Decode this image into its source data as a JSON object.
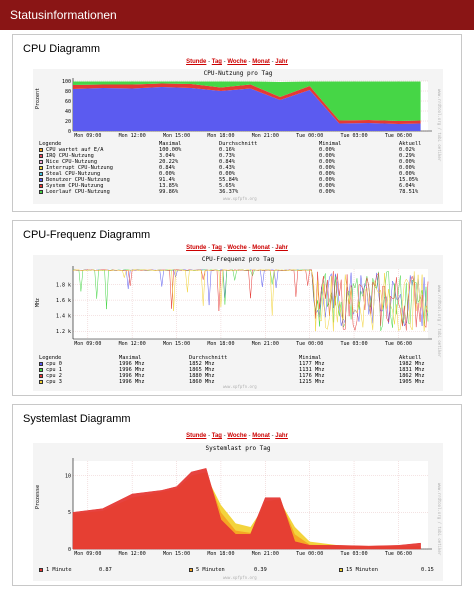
{
  "page": {
    "title": "Statusinformationen"
  },
  "nav_links": {
    "hour": "Stunde",
    "day": "Tag",
    "week": "Woche",
    "month": "Monat",
    "year": "Jahr",
    "sep": " - "
  },
  "cpu_panel": {
    "title": "CPU Diagramm",
    "chart_title": "CPU-Nutzung pro Tag",
    "ylabel": "Prozent",
    "watermark": "www.rrdtool.org / tobi oetiker",
    "footer": "www.xpfpfn.org",
    "columns": [
      "Legende",
      "Maximal",
      "Durchschnitt",
      "Minimal",
      "Aktuell"
    ],
    "rows": [
      {
        "name": "CPU wartet auf E/A",
        "max": "100.00%",
        "avg": "0.16%",
        "min": "0.00%",
        "cur": "0.02%",
        "color": "#f5a623"
      },
      {
        "name": "IRQ CPU-Nutzung",
        "max": "3.04%",
        "avg": "0.73%",
        "min": "0.00%",
        "cur": "0.29%",
        "color": "#e84a5f"
      },
      {
        "name": "Nice CPU-Nutzung",
        "max": "20.22%",
        "avg": "0.84%",
        "min": "0.00%",
        "cur": "0.00%",
        "color": "#f3a5d0"
      },
      {
        "name": "Interrupt CPU-Nutzung",
        "max": "0.84%",
        "avg": "0.43%",
        "min": "0.00%",
        "cur": "0.00%",
        "color": "#f2d233"
      },
      {
        "name": "Steal CPU-Nutzung",
        "max": "0.00%",
        "avg": "0.00%",
        "min": "0.00%",
        "cur": "0.00%",
        "color": "#43c0e0"
      },
      {
        "name": "Benutzer CPU-Nutzung",
        "max": "91.4%",
        "avg": "55.84%",
        "min": "0.00%",
        "cur": "15.05%",
        "color": "#5b5bf0"
      },
      {
        "name": "System CPU-Nutzung",
        "max": "13.85%",
        "avg": "5.65%",
        "min": "0.00%",
        "cur": "6.04%",
        "color": "#e53935"
      },
      {
        "name": "Leerlauf CPU-Nutzung",
        "max": "99.86%",
        "avg": "36.37%",
        "min": "0.00%",
        "cur": "78.51%",
        "color": "#46d646"
      }
    ]
  },
  "freq_panel": {
    "title": "CPU-Frequenz Diagramm",
    "chart_title": "CPU-Frequenz pro Tag",
    "ylabel": "MHz",
    "watermark": "www.rrdtool.org / tobi oetiker",
    "footer": "www.xpfpfn.org",
    "columns": [
      "Legende",
      "Maximal",
      "Durchschnitt",
      "Minimal",
      "Aktuell"
    ],
    "rows": [
      {
        "name": "cpu 0",
        "max": "1996 Mhz",
        "avg": "1852 Mhz",
        "min": "1177 Mhz",
        "cur": "1982 Mhz",
        "color": "#5b5bf0"
      },
      {
        "name": "cpu 1",
        "max": "1996 Mhz",
        "avg": "1865 Mhz",
        "min": "1131 Mhz",
        "cur": "1831 Mhz",
        "color": "#46d646"
      },
      {
        "name": "cpu 2",
        "max": "1996 Mhz",
        "avg": "1880 Mhz",
        "min": "1176 Mhz",
        "cur": "1862 Mhz",
        "color": "#e53935"
      },
      {
        "name": "cpu 3",
        "max": "1996 Mhz",
        "avg": "1860 Mhz",
        "min": "1215 Mhz",
        "cur": "1905 Mhz",
        "color": "#f2d233"
      }
    ]
  },
  "load_panel": {
    "title": "Systemlast Diagramm",
    "chart_title": "Systemlast pro Tag",
    "ylabel": "Prozesse",
    "watermark": "www.rrdtool.org / tobi oetiker",
    "footer": "www.xpfpfn.org",
    "legend": [
      {
        "name": "1 Minute",
        "value": "0.87",
        "color": "#e53935"
      },
      {
        "name": "5 Minuten",
        "value": "0.39",
        "color": "#f5a623"
      },
      {
        "name": "15 Minuten",
        "value": "0.15",
        "color": "#f2d233"
      }
    ]
  },
  "chart_data": [
    {
      "type": "area",
      "title": "CPU-Nutzung pro Tag",
      "ylabel": "Prozent",
      "ylim": [
        0,
        100
      ],
      "y_ticks": [
        "0",
        "20",
        "40",
        "60",
        "80",
        "100"
      ],
      "x_ticks": [
        "Mon 09:00",
        "Mon 12:00",
        "Mon 15:00",
        "Mon 18:00",
        "Mon 21:00",
        "Tue 00:00",
        "Tue 03:00",
        "Tue 06:00"
      ],
      "x_hours": [
        0,
        2,
        4,
        6,
        8,
        10,
        12,
        14,
        16,
        18,
        20,
        22,
        23.5
      ],
      "series": [
        {
          "name": "Benutzer CPU-Nutzung",
          "values": [
            84,
            86,
            85,
            88,
            86,
            80,
            85,
            62,
            82,
            15,
            16,
            14,
            15
          ]
        },
        {
          "name": "System CPU-Nutzung",
          "values": [
            8,
            7,
            8,
            7,
            8,
            7,
            8,
            6,
            8,
            6,
            6,
            6,
            6
          ]
        },
        {
          "name": "Leerlauf CPU-Nutzung",
          "values": [
            7,
            6,
            6,
            4,
            5,
            12,
            6,
            30,
            9,
            78,
            77,
            79,
            78
          ]
        }
      ]
    },
    {
      "type": "line",
      "title": "CPU-Frequenz pro Tag",
      "ylabel": "MHz",
      "ylim": [
        1100,
        2000
      ],
      "y_ticks": [
        "1.2 k",
        "1.4 k",
        "1.6 k",
        "1.8 k"
      ],
      "x_ticks": [
        "Mon 09:00",
        "Mon 12:00",
        "Mon 15:00",
        "Mon 18:00",
        "Mon 21:00",
        "Tue 00:00",
        "Tue 03:00",
        "Tue 06:00"
      ]
    },
    {
      "type": "area",
      "title": "Systemlast pro Tag",
      "ylabel": "Prozesse",
      "ylim": [
        0,
        12
      ],
      "y_ticks": [
        "0",
        "5",
        "10"
      ],
      "x_ticks": [
        "Mon 09:00",
        "Mon 12:00",
        "Mon 15:00",
        "Mon 18:00",
        "Mon 21:00",
        "Tue 00:00",
        "Tue 03:00",
        "Tue 06:00"
      ],
      "x_hours": [
        0,
        2,
        4,
        6,
        7,
        8,
        9,
        10,
        11,
        12,
        13,
        14,
        15,
        16,
        18,
        20,
        22,
        23.5
      ],
      "series": [
        {
          "name": "1 Minute",
          "values": [
            5,
            5.5,
            7.5,
            8,
            8.5,
            10.5,
            11,
            4,
            2,
            2,
            7,
            7,
            1,
            0.5,
            0.5,
            0.4,
            0.5,
            0.8
          ]
        },
        {
          "name": "5 Minuten",
          "values": [
            4.8,
            5.2,
            7,
            7.8,
            8.2,
            10,
            10.5,
            5,
            2.5,
            2.2,
            6.5,
            6.8,
            2,
            0.6,
            0.4,
            0.4,
            0.4,
            0.4
          ]
        },
        {
          "name": "15 Minuten",
          "values": [
            4.5,
            5,
            6.5,
            7.5,
            8,
            9.5,
            10,
            6,
            3.5,
            3,
            6,
            6.5,
            3,
            1,
            0.5,
            0.3,
            0.2,
            0.15
          ]
        }
      ]
    }
  ]
}
